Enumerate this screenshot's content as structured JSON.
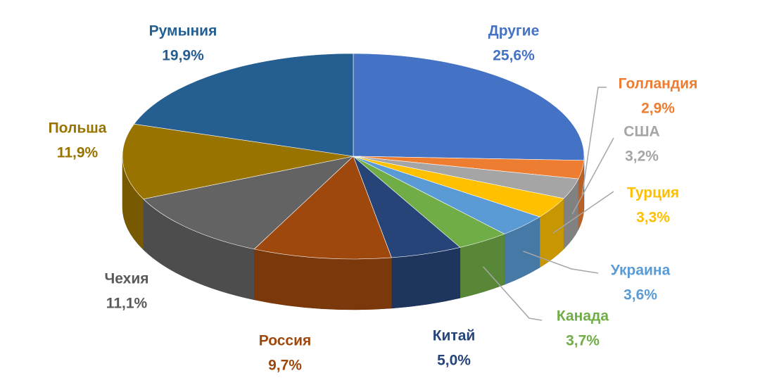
{
  "chart_data": {
    "type": "pie",
    "categories": [
      "Другие",
      "Голландия",
      "США",
      "Турция",
      "Украина",
      "Канада",
      "Китай",
      "Россия",
      "Чехия",
      "Польша",
      "Румыния"
    ],
    "values": [
      25.6,
      2.9,
      3.2,
      3.3,
      3.6,
      3.7,
      5.0,
      9.7,
      11.1,
      11.9,
      19.9
    ],
    "value_labels": [
      "25,6%",
      "2,9%",
      "3,2%",
      "3,3%",
      "3,6%",
      "3,7%",
      "5,0%",
      "9,7%",
      "11,1%",
      "11,9%",
      "19,9%"
    ],
    "colors": [
      "#4472c4",
      "#ed7d31",
      "#a5a5a5",
      "#ffc000",
      "#5b9bd5",
      "#70ad47",
      "#264478",
      "#9e480e",
      "#636363",
      "#997300",
      "#255e91"
    ]
  }
}
